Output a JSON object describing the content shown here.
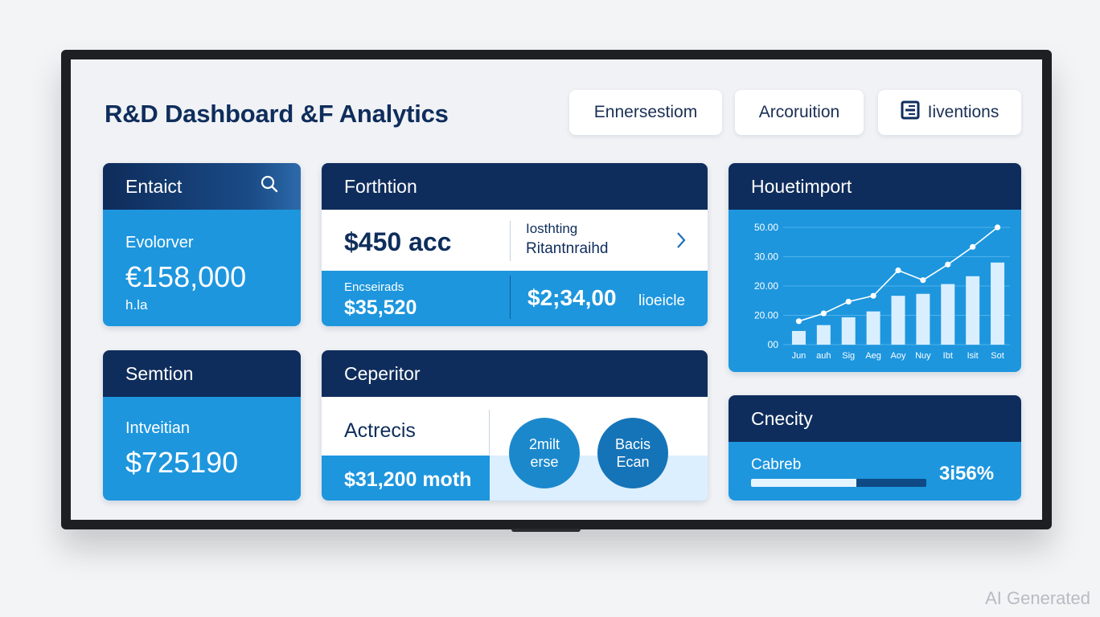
{
  "header": {
    "title": "R&D Dashboard &F Analytics"
  },
  "top_buttons": [
    {
      "label": "Ennersestiom"
    },
    {
      "label": "Arcoruition"
    },
    {
      "label": "Iiventions",
      "icon": "grid-icon"
    }
  ],
  "card_entaict": {
    "title": "Entaict",
    "label": "Evolorver",
    "value": "€158,000",
    "sub": "h.la"
  },
  "card_sennion": {
    "title": "Semtion",
    "label": "Intveitian",
    "value": "$725190"
  },
  "card_forthtion": {
    "title": "Forthtion",
    "value_top": "$450 acc",
    "note_line1": "Iosthting",
    "note_line2": "Ritantnraihd",
    "sub_label": "Encseirads",
    "sub_value": "$35,520",
    "right_value": "$2;34,00",
    "right_label": "lioeicle"
  },
  "card_ceperitor": {
    "title": "Ceperitor",
    "label": "Actrecis",
    "value": "$31,200 moth",
    "circle1": {
      "line1": "2milt",
      "line2": "erse"
    },
    "circle2": {
      "line1": "Bacis",
      "line2": "Ecan"
    }
  },
  "card_houetimport": {
    "title": "Houetimport"
  },
  "chart_data": {
    "type": "bar",
    "categories": [
      "Jun",
      "auh",
      "Sig",
      "Aeg",
      "Aoy",
      "Nuy",
      "Ibt",
      "Isit",
      "Sot"
    ],
    "values": [
      7,
      10,
      14,
      17,
      25,
      26,
      31,
      35,
      42
    ],
    "line": [
      12,
      16,
      22,
      25,
      38,
      33,
      41,
      50,
      60
    ],
    "ytick_labels": [
      "00",
      "20.00",
      "20.00",
      "30.00",
      "50.00"
    ],
    "ylim": [
      0,
      60
    ],
    "colors": {
      "bars": "#d9efff",
      "line": "#ffffff",
      "grid": "#4fb2ea"
    }
  },
  "card_cnecity": {
    "title": "Cnecity",
    "label": "Cabreb",
    "value": "3i56%",
    "progress": 0.6
  },
  "watermark": "AI Generated",
  "colors": {
    "navy": "#0f2d5c",
    "blue": "#1d96de",
    "background": "#f0f2f5"
  }
}
